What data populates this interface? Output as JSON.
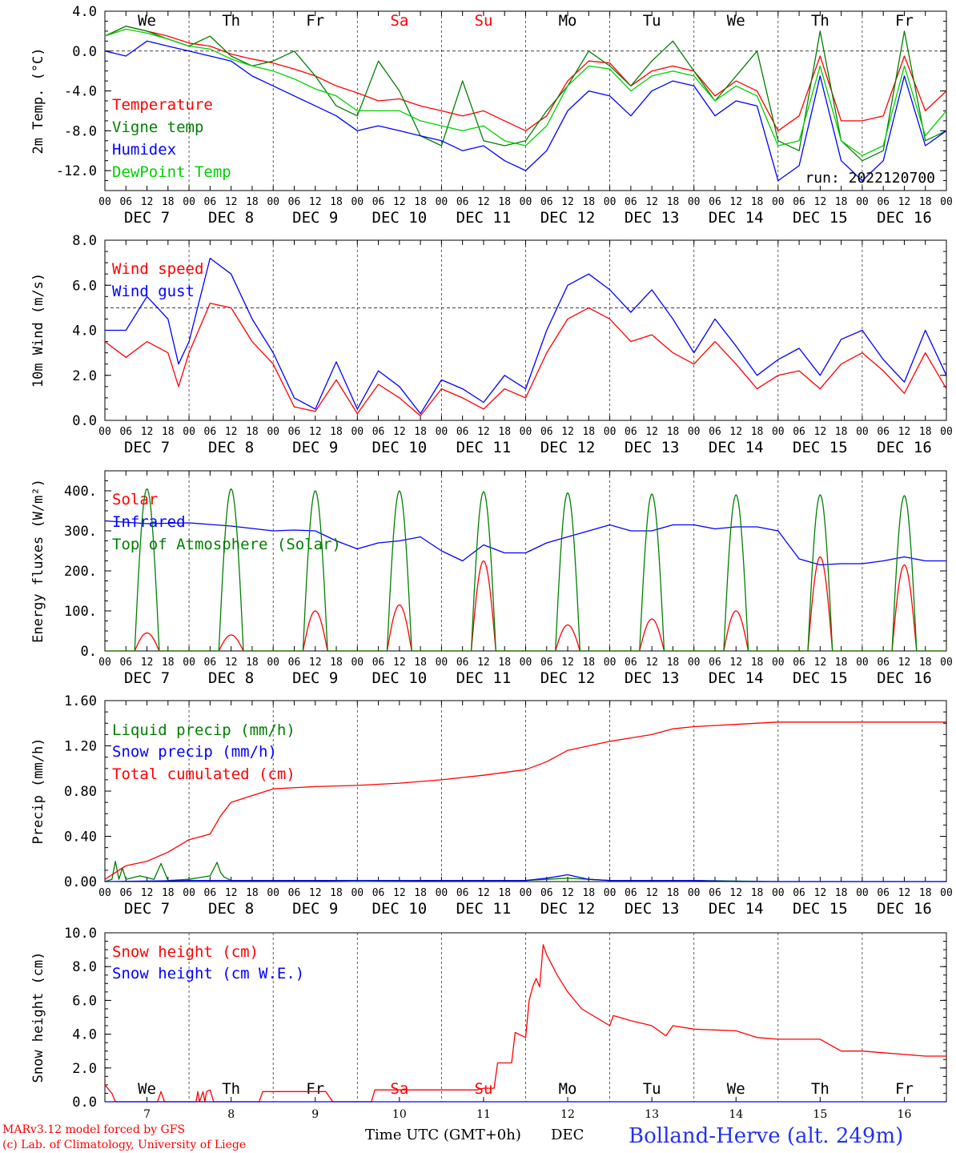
{
  "days": {
    "weekday": [
      "We",
      "Th",
      "Fr",
      "Sa",
      "Su",
      "Mo",
      "Tu",
      "We",
      "Th",
      "Fr"
    ],
    "weekday_colors": [
      "#000000",
      "#000000",
      "#000000",
      "#ff0000",
      "#ff0000",
      "#000000",
      "#000000",
      "#000000",
      "#000000",
      "#000000"
    ],
    "dates": [
      "DEC  7",
      "DEC  8",
      "DEC  9",
      "DEC 10",
      "DEC 11",
      "DEC 12",
      "DEC 13",
      "DEC 14",
      "DEC 15",
      "DEC 16"
    ],
    "day_numbers": [
      "7",
      "8",
      "9",
      "10",
      "11",
      "12",
      "13",
      "14",
      "15",
      "16"
    ]
  },
  "hour_ticks": [
    "00",
    "06",
    "12",
    "18"
  ],
  "final_hour_tick": "00",
  "footer": {
    "credit_line1": "MARv3.12 model forced by GFS",
    "credit_line2": "(c) Lab. of Climatology, University of Liege",
    "xlabel": "Time UTC (GMT+0h)",
    "month": "DEC",
    "station": "Bolland-Herve (alt. 249m)"
  },
  "colors": {
    "red": "#ff0000",
    "green": "#008000",
    "blue": "#0000ff",
    "lightgreen": "#00d000"
  },
  "chart_data": [
    {
      "type": "line",
      "panel": "temperature",
      "ylabel": "2m Temp. (°C)",
      "ylim": [
        -14,
        4
      ],
      "yticks": [
        "4.0",
        "0.0",
        "-4.0",
        "-8.0",
        "-12.0"
      ],
      "yticks_values": [
        4,
        0,
        -4,
        -8,
        -12
      ],
      "x_unit": "hours since DEC 7 00 UTC",
      "run_label": "run: 2022120700",
      "series": [
        {
          "name": "Temperature",
          "color": "#ff0000",
          "x": [
            0,
            6,
            12,
            18,
            24,
            30,
            36,
            42,
            48,
            54,
            60,
            66,
            72,
            78,
            84,
            90,
            96,
            102,
            108,
            114,
            120,
            126,
            132,
            138,
            144,
            150,
            156,
            162,
            168,
            174,
            180,
            186,
            192,
            198,
            204,
            210,
            216,
            222,
            228,
            234,
            240
          ],
          "values": [
            1.5,
            2.5,
            2.0,
            1.5,
            0.8,
            0.5,
            -0.3,
            -0.8,
            -1.2,
            -1.8,
            -2.5,
            -3.5,
            -4.2,
            -5.0,
            -4.8,
            -5.5,
            -6.0,
            -6.5,
            -6.0,
            -7.0,
            -8.0,
            -6.5,
            -3.0,
            -1.0,
            -1.2,
            -3.5,
            -2.0,
            -1.5,
            -2.0,
            -4.5,
            -3.0,
            -4.0,
            -8.0,
            -6.5,
            -0.5,
            -7.0,
            -7.0,
            -6.5,
            -0.5,
            -6.0,
            -4.0
          ]
        },
        {
          "name": "Vigne temp",
          "color": "#008000",
          "x": [
            0,
            6,
            12,
            18,
            24,
            30,
            36,
            42,
            48,
            54,
            60,
            66,
            72,
            78,
            84,
            90,
            96,
            102,
            108,
            114,
            120,
            126,
            132,
            138,
            144,
            150,
            156,
            162,
            168,
            174,
            180,
            186,
            192,
            198,
            204,
            210,
            216,
            222,
            228,
            234,
            240
          ],
          "values": [
            1.5,
            2.5,
            2.0,
            1.2,
            0.5,
            1.5,
            -0.5,
            -1.5,
            -1.0,
            0.0,
            -2.5,
            -5.5,
            -6.5,
            -1.0,
            -4.0,
            -8.5,
            -9.5,
            -3.0,
            -9.0,
            -9.5,
            -9.0,
            -6.0,
            -3.5,
            0.0,
            -1.5,
            -3.5,
            -1.0,
            1.0,
            -2.0,
            -5.0,
            -2.5,
            0.0,
            -9.0,
            -10.0,
            2.0,
            -9.0,
            -11.0,
            -10.0,
            2.0,
            -9.0,
            -8.0
          ]
        },
        {
          "name": "Humidex",
          "color": "#0000ff",
          "x": [
            0,
            6,
            12,
            18,
            24,
            30,
            36,
            42,
            48,
            54,
            60,
            66,
            72,
            78,
            84,
            90,
            96,
            102,
            108,
            114,
            120,
            126,
            132,
            138,
            144,
            150,
            156,
            162,
            168,
            174,
            180,
            186,
            192,
            198,
            204,
            210,
            216,
            222,
            228,
            234,
            240
          ],
          "values": [
            0.0,
            -0.5,
            1.0,
            0.5,
            0.0,
            -0.5,
            -1.0,
            -2.5,
            -3.5,
            -4.5,
            -5.5,
            -6.5,
            -8.0,
            -7.5,
            -8.0,
            -8.5,
            -9.0,
            -10.0,
            -9.5,
            -11.0,
            -12.0,
            -10.0,
            -6.0,
            -4.0,
            -4.5,
            -6.5,
            -4.0,
            -3.0,
            -3.5,
            -6.5,
            -5.0,
            -5.5,
            -13.0,
            -11.5,
            -2.5,
            -11.0,
            -13.0,
            -11.0,
            -2.5,
            -9.5,
            -8.0
          ]
        },
        {
          "name": "DewPoint Temp",
          "color": "#00d000",
          "x": [
            0,
            6,
            12,
            18,
            24,
            30,
            36,
            42,
            48,
            54,
            60,
            66,
            72,
            78,
            84,
            90,
            96,
            102,
            108,
            114,
            120,
            126,
            132,
            138,
            144,
            150,
            156,
            162,
            168,
            174,
            180,
            186,
            192,
            198,
            204,
            210,
            216,
            222,
            228,
            234,
            240
          ],
          "values": [
            1.5,
            2.2,
            1.8,
            1.2,
            0.5,
            0.2,
            -0.8,
            -1.5,
            -2.0,
            -2.8,
            -3.8,
            -4.5,
            -6.0,
            -6.0,
            -6.0,
            -7.0,
            -7.5,
            -8.0,
            -7.5,
            -9.0,
            -9.5,
            -7.5,
            -3.5,
            -1.5,
            -1.8,
            -4.0,
            -2.5,
            -2.0,
            -2.5,
            -5.0,
            -3.5,
            -4.5,
            -9.5,
            -9.0,
            -1.5,
            -9.0,
            -10.5,
            -9.5,
            -1.5,
            -8.5,
            -6.0
          ]
        }
      ]
    },
    {
      "type": "line",
      "panel": "wind",
      "ylabel": "10m Wind (m/s)",
      "ylim": [
        0,
        8
      ],
      "yticks": [
        "8.0",
        "6.0",
        "4.0",
        "2.0",
        "0.0"
      ],
      "yticks_values": [
        8,
        6,
        4,
        2,
        0
      ],
      "reference_line": 5,
      "x_unit": "hours since DEC 7 00 UTC",
      "series": [
        {
          "name": "Wind speed",
          "color": "#ff0000",
          "x": [
            0,
            6,
            12,
            18,
            21,
            24,
            30,
            36,
            42,
            48,
            54,
            60,
            66,
            72,
            78,
            84,
            90,
            96,
            102,
            108,
            114,
            120,
            126,
            132,
            138,
            144,
            150,
            156,
            162,
            168,
            174,
            180,
            186,
            192,
            198,
            204,
            210,
            216,
            222,
            228,
            234,
            240
          ],
          "values": [
            3.5,
            2.8,
            3.5,
            3.0,
            1.5,
            3.0,
            5.2,
            5.0,
            3.5,
            2.5,
            0.6,
            0.4,
            1.8,
            0.3,
            1.6,
            1.0,
            0.2,
            1.4,
            1.0,
            0.5,
            1.4,
            1.0,
            3.0,
            4.5,
            5.0,
            4.5,
            3.5,
            3.8,
            3.0,
            2.5,
            3.5,
            2.5,
            1.4,
            2.0,
            2.2,
            1.4,
            2.5,
            3.0,
            2.2,
            1.2,
            3.0,
            1.4
          ]
        },
        {
          "name": "Wind gust",
          "color": "#0000ff",
          "x": [
            0,
            6,
            12,
            18,
            21,
            24,
            30,
            36,
            42,
            48,
            54,
            60,
            66,
            72,
            78,
            84,
            90,
            96,
            102,
            108,
            114,
            120,
            126,
            132,
            138,
            144,
            150,
            156,
            162,
            168,
            174,
            180,
            186,
            192,
            198,
            204,
            210,
            216,
            222,
            228,
            234,
            240
          ],
          "values": [
            4.0,
            4.0,
            5.5,
            4.5,
            2.5,
            3.5,
            7.2,
            6.5,
            4.5,
            3.0,
            1.0,
            0.5,
            2.6,
            0.5,
            2.2,
            1.5,
            0.3,
            1.8,
            1.4,
            0.8,
            2.0,
            1.4,
            4.0,
            6.0,
            6.5,
            5.8,
            4.8,
            5.8,
            4.5,
            3.0,
            4.5,
            3.3,
            2.0,
            2.7,
            3.2,
            2.0,
            3.6,
            4.0,
            2.7,
            1.7,
            4.0,
            2.0
          ]
        }
      ]
    },
    {
      "type": "line",
      "panel": "energy",
      "ylabel": "Energy fluxes (W/m²)",
      "ylim": [
        0,
        450
      ],
      "yticks": [
        "400.",
        "300.",
        "200.",
        "100.",
        "0."
      ],
      "yticks_values": [
        400,
        300,
        200,
        100,
        0
      ],
      "x_unit": "hours since DEC 7 00 UTC",
      "series": [
        {
          "name": "Solar",
          "color": "#ff0000",
          "kind": "daily_peak",
          "peaks": [
            45,
            40,
            100,
            115,
            225,
            65,
            80,
            100,
            235,
            215
          ]
        },
        {
          "name": "Infrared",
          "color": "#0000ff",
          "x": [
            0,
            12,
            24,
            36,
            48,
            54,
            60,
            66,
            72,
            78,
            84,
            90,
            96,
            102,
            108,
            114,
            120,
            126,
            132,
            138,
            144,
            150,
            156,
            162,
            168,
            174,
            180,
            186,
            192,
            198,
            204,
            210,
            216,
            222,
            228,
            234,
            240
          ],
          "values": [
            325,
            318,
            320,
            312,
            300,
            302,
            300,
            275,
            255,
            270,
            275,
            285,
            250,
            225,
            265,
            245,
            245,
            270,
            285,
            300,
            315,
            300,
            300,
            315,
            315,
            305,
            310,
            310,
            300,
            230,
            215,
            218,
            218,
            225,
            235,
            225,
            225
          ]
        },
        {
          "name": "Top of Atmosphere (Solar)",
          "color": "#008000",
          "kind": "daily_peak",
          "peaks": [
            405,
            405,
            400,
            400,
            398,
            395,
            392,
            390,
            390,
            388
          ]
        }
      ]
    },
    {
      "type": "line",
      "panel": "precip",
      "ylabel": "Precip (mm/h)",
      "ylim": [
        0,
        1.6
      ],
      "yticks": [
        "1.60",
        "1.20",
        "0.80",
        "0.40",
        "0.00"
      ],
      "yticks_values": [
        1.6,
        1.2,
        0.8,
        0.4,
        0
      ],
      "x_unit": "hours since DEC 7 00 UTC",
      "series": [
        {
          "name": "Liquid precip (mm/h)",
          "color": "#008000",
          "x": [
            0,
            2,
            3,
            4,
            5,
            6,
            10,
            14,
            16,
            18,
            24,
            30,
            32,
            33,
            34,
            36,
            42,
            48,
            60,
            72,
            96,
            120,
            132,
            144,
            168,
            192,
            216,
            240
          ],
          "values": [
            0,
            0.02,
            0.18,
            0.02,
            0.12,
            0.02,
            0.05,
            0.02,
            0.16,
            0.01,
            0.02,
            0.05,
            0.17,
            0.08,
            0.04,
            0.01,
            0.01,
            0.01,
            0.01,
            0.0,
            0.01,
            0.01,
            0.03,
            0.01,
            0.01,
            0.0,
            0.0,
            0.0
          ]
        },
        {
          "name": "Snow precip (mm/h)",
          "color": "#0000ff",
          "x": [
            0,
            24,
            48,
            96,
            120,
            126,
            132,
            138,
            144,
            168,
            180,
            192,
            240
          ],
          "values": [
            0,
            0.01,
            0.01,
            0.01,
            0.01,
            0.03,
            0.06,
            0.02,
            0.01,
            0.01,
            0.0,
            0.0,
            0.0
          ]
        },
        {
          "name": "Total cumulated (cm)",
          "color": "#ff0000",
          "x": [
            0,
            6,
            12,
            18,
            24,
            30,
            33,
            36,
            42,
            48,
            60,
            72,
            84,
            96,
            108,
            120,
            126,
            132,
            138,
            144,
            150,
            156,
            162,
            168,
            174,
            180,
            192,
            204,
            216,
            228,
            240
          ],
          "values": [
            0.02,
            0.14,
            0.18,
            0.26,
            0.37,
            0.42,
            0.58,
            0.7,
            0.76,
            0.82,
            0.84,
            0.85,
            0.87,
            0.9,
            0.94,
            0.99,
            1.06,
            1.16,
            1.2,
            1.24,
            1.27,
            1.3,
            1.35,
            1.37,
            1.38,
            1.39,
            1.41,
            1.41,
            1.41,
            1.41,
            1.41
          ]
        }
      ]
    },
    {
      "type": "line",
      "panel": "snow",
      "ylabel": "Snow height (cm)",
      "ylim": [
        0,
        10
      ],
      "yticks": [
        "10.0",
        "8.0",
        "6.0",
        "4.0",
        "2.0",
        "0.0"
      ],
      "yticks_values": [
        10,
        8,
        6,
        4,
        2,
        0
      ],
      "x_unit": "hours since DEC 7 00 UTC",
      "series": [
        {
          "name": "Snow height (cm)",
          "color": "#ff0000",
          "x": [
            0,
            2,
            3,
            15,
            16,
            17,
            26,
            26.5,
            27,
            28,
            28.5,
            29,
            30,
            31,
            44,
            45,
            63,
            65,
            76,
            77,
            90,
            92,
            106,
            108,
            111,
            112,
            116,
            117,
            120,
            121,
            122,
            123,
            124,
            125,
            126,
            127,
            129,
            132,
            136,
            140,
            144,
            145,
            150,
            156,
            160,
            162,
            168,
            180,
            186,
            192,
            198,
            204,
            210,
            216,
            222,
            228,
            234,
            240
          ],
          "values": [
            1.0,
            0.5,
            0,
            0,
            0.6,
            0,
            0,
            0.6,
            0,
            0.6,
            0,
            0.6,
            0.7,
            0,
            0,
            0.6,
            0.6,
            0,
            0,
            0.7,
            0.7,
            0.7,
            0.7,
            0.8,
            0.8,
            2.3,
            2.3,
            4.1,
            3.8,
            6.0,
            6.8,
            7.3,
            6.8,
            9.3,
            8.7,
            8.3,
            7.5,
            6.5,
            5.5,
            5.0,
            4.5,
            5.1,
            4.8,
            4.5,
            3.9,
            4.5,
            4.3,
            4.2,
            3.8,
            3.7,
            3.7,
            3.7,
            3.0,
            3.0,
            2.9,
            2.8,
            2.7,
            2.7
          ]
        },
        {
          "name": "Snow height (cm W.E.)",
          "color": "#0000ff",
          "x": [
            0,
            240
          ],
          "values": [
            0,
            0
          ]
        }
      ]
    }
  ]
}
